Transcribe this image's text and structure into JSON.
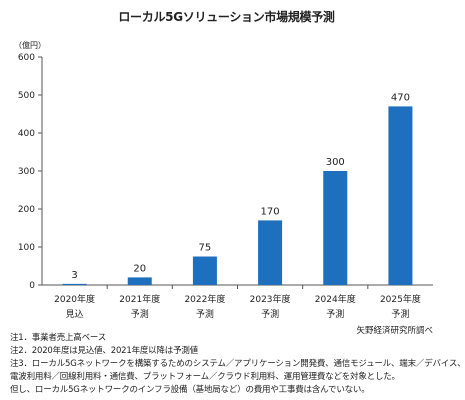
{
  "chart_data": {
    "type": "bar",
    "title": "ローカル5Gソリューション市場規模予測",
    "unit_label": "（億円）",
    "categories": [
      [
        "2020年度",
        "見込"
      ],
      [
        "2021年度",
        "予測"
      ],
      [
        "2022年度",
        "予測"
      ],
      [
        "2023年度",
        "予測"
      ],
      [
        "2024年度",
        "予測"
      ],
      [
        "2025年度",
        "予測"
      ]
    ],
    "values": [
      3,
      20,
      75,
      170,
      300,
      470
    ],
    "value_labels": [
      "3",
      "20",
      "75",
      "170",
      "300",
      "470"
    ],
    "ylim": [
      0,
      600
    ],
    "yticks": [
      0,
      100,
      200,
      300,
      400,
      500,
      600
    ],
    "grid": false,
    "bar_color": "#1f6fbf",
    "source": "矢野経済研究所調べ"
  },
  "notes": [
    "注1．事業者売上高ベース",
    "注2．2020年度は見込値、2021年度以降は予測値",
    "注3．ローカル5Gネットワークを構築するためのシステム／アプリケーション開発費、通信モジュール、端末／デバイス、",
    "電波利用料／回線利用料・通信費、プラットフォーム／クラウド利用料、運用管理費などを対象とした。",
    "但し、ローカル5Gネットワークのインフラ設備（基地局など）の費用や工事費は含んでいない。"
  ]
}
